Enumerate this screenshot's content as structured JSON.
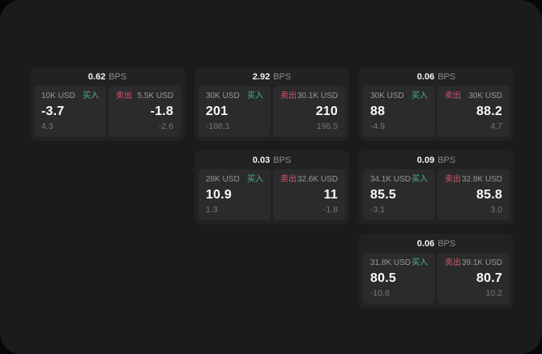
{
  "colors": {
    "page_background": "#060607",
    "panel_background": "#1b1b1d",
    "card_background": "#222224",
    "tile_background": "#2b2b2d",
    "text_primary": "#fafafa",
    "text_secondary": "#98989e",
    "text_muted": "#76767c",
    "buy_green": "#4cb782",
    "sell_red": "#d9566b"
  },
  "labels": {
    "bps_unit": "BPS",
    "buy": "买入",
    "sell": "卖出"
  },
  "cards": [
    {
      "bps": "0.62",
      "buy": {
        "amount": "10K USD",
        "value": "-3.7",
        "sub": "4.3"
      },
      "sell": {
        "amount": "5.5K USD",
        "value": "-1.8",
        "sub": "-2.6"
      }
    },
    {
      "bps": "2.92",
      "buy": {
        "amount": "30K USD",
        "value": "201",
        "sub": "-188.1"
      },
      "sell": {
        "amount": "30.1K USD",
        "value": "210",
        "sub": "196.5"
      }
    },
    {
      "bps": "0.06",
      "buy": {
        "amount": "30K USD",
        "value": "88",
        "sub": "-4.9"
      },
      "sell": {
        "amount": "30K USD",
        "value": "88.2",
        "sub": "4.7"
      }
    },
    {
      "bps": "0.03",
      "buy": {
        "amount": "28K USD",
        "value": "10.9",
        "sub": "1.3"
      },
      "sell": {
        "amount": "32.6K USD",
        "value": "11",
        "sub": "-1.8"
      }
    },
    {
      "bps": "0.09",
      "buy": {
        "amount": "34.1K USD",
        "value": "85.5",
        "sub": "-3.1"
      },
      "sell": {
        "amount": "32.8K USD",
        "value": "85.8",
        "sub": "3.0"
      }
    },
    {
      "bps": "0.06",
      "buy": {
        "amount": "31.8K USD",
        "value": "80.5",
        "sub": "-10.8"
      },
      "sell": {
        "amount": "39.1K USD",
        "value": "80.7",
        "sub": "10.2"
      }
    }
  ]
}
